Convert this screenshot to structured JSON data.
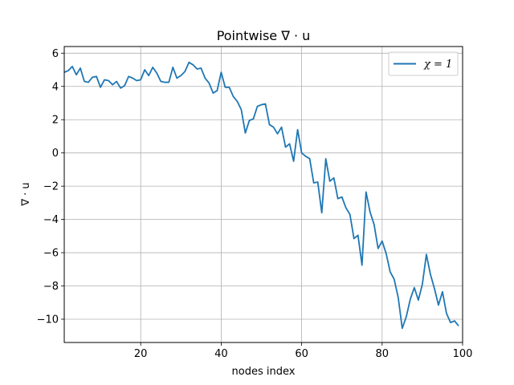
{
  "chart_data": {
    "type": "line",
    "title": "Pointwise ∇ · u",
    "xlabel": "nodes index",
    "ylabel": "∇ · u",
    "xlim": [
      1,
      100
    ],
    "ylim": [
      -11.4,
      6.4
    ],
    "xticks": [
      20,
      40,
      60,
      80,
      100
    ],
    "xtick_labels": [
      "20",
      "40",
      "60",
      "80",
      "100"
    ],
    "yticks": [
      -10,
      -8,
      -6,
      -4,
      -2,
      0,
      2,
      4,
      6
    ],
    "ytick_labels": [
      "−10",
      "−8",
      "−6",
      "−4",
      "−2",
      "0",
      "2",
      "4",
      "6"
    ],
    "grid": true,
    "legend_position": "top-right",
    "series": [
      {
        "name": "χ = 1",
        "color": "#1f77b4",
        "x": [
          1,
          2,
          3,
          4,
          5,
          6,
          7,
          8,
          9,
          10,
          11,
          12,
          13,
          14,
          15,
          16,
          17,
          18,
          19,
          20,
          21,
          22,
          23,
          24,
          25,
          26,
          27,
          28,
          29,
          30,
          31,
          32,
          33,
          34,
          35,
          36,
          37,
          38,
          39,
          40,
          41,
          42,
          43,
          44,
          45,
          46,
          47,
          48,
          49,
          50,
          51,
          52,
          53,
          54,
          55,
          56,
          57,
          58,
          59,
          60,
          61,
          62,
          63,
          64,
          65,
          66,
          67,
          68,
          69,
          70,
          71,
          72,
          73,
          74,
          75,
          76,
          77,
          78,
          79,
          80,
          81,
          82,
          83,
          84,
          85,
          86,
          87,
          88,
          89,
          90,
          91,
          92,
          93,
          94,
          95,
          96,
          97,
          98,
          99
        ],
        "values": [
          4.85,
          4.95,
          5.2,
          4.7,
          5.1,
          4.3,
          4.25,
          4.55,
          4.6,
          3.95,
          4.4,
          4.35,
          4.1,
          4.3,
          3.9,
          4.05,
          4.6,
          4.5,
          4.35,
          4.4,
          5.0,
          4.65,
          5.15,
          4.8,
          4.3,
          4.25,
          4.25,
          5.15,
          4.5,
          4.65,
          4.9,
          5.45,
          5.3,
          5.05,
          5.1,
          4.5,
          4.2,
          3.6,
          3.75,
          4.85,
          3.95,
          3.95,
          3.4,
          3.1,
          2.6,
          1.2,
          1.95,
          2.05,
          2.8,
          2.9,
          2.95,
          1.7,
          1.55,
          1.15,
          1.55,
          0.35,
          0.55,
          -0.5,
          1.4,
          0.0,
          -0.2,
          -0.35,
          -1.8,
          -1.75,
          -3.6,
          -0.35,
          -1.7,
          -1.5,
          -2.75,
          -2.65,
          -3.3,
          -3.7,
          -5.15,
          -4.95,
          -6.75,
          -2.35,
          -3.55,
          -4.3,
          -5.75,
          -5.3,
          -6.05,
          -7.15,
          -7.6,
          -8.7,
          -10.55,
          -9.85,
          -8.8,
          -8.1,
          -8.85,
          -7.9,
          -6.1,
          -7.3,
          -8.15,
          -9.15,
          -8.35,
          -9.65,
          -10.2,
          -10.1,
          -10.4
        ]
      }
    ]
  }
}
